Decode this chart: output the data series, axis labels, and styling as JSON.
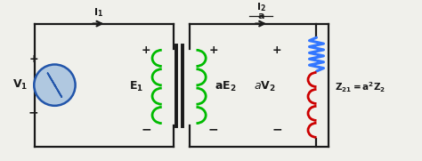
{
  "bg_color": "#f0f0eb",
  "line_color": "#1a1a1a",
  "green_color": "#00bb00",
  "blue_color": "#3377ff",
  "red_color": "#cc0000",
  "source_fill": "#b0c8e0",
  "source_border": "#2255aa",
  "fig_width": 4.74,
  "fig_height": 1.81,
  "dpi": 100
}
